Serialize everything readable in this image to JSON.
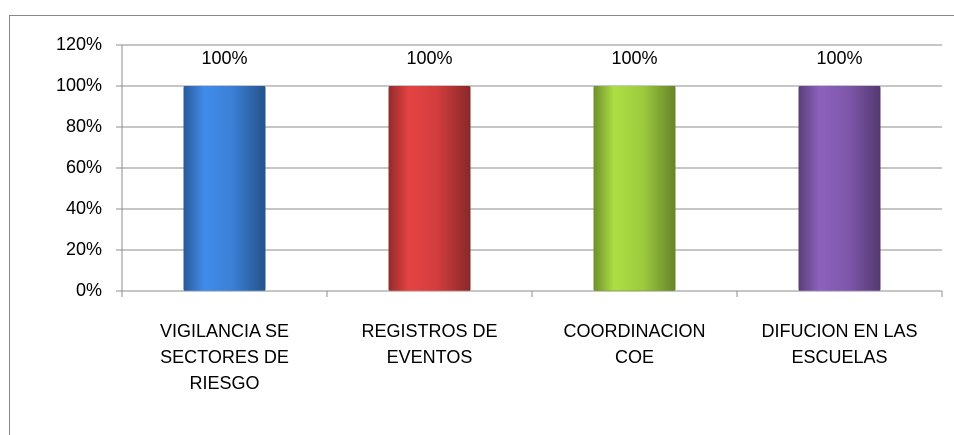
{
  "chart_data": {
    "type": "bar",
    "categories": [
      "VIGILANCIA SE\nSECTORES DE\nRIESGO",
      "REGISTROS DE\nEVENTOS",
      "COORDINACION\nCOE",
      "DIFUCION EN LAS\nESCUELAS"
    ],
    "values": [
      100,
      100,
      100,
      100
    ],
    "value_labels": [
      "100%",
      "100%",
      "100%",
      "100%"
    ],
    "colors": [
      "#3b7fd6",
      "#d13d3d",
      "#9dcb3e",
      "#7f58ac"
    ],
    "ylim": [
      0,
      120
    ],
    "yticks": [
      {
        "value": 0,
        "label": "0%"
      },
      {
        "value": 20,
        "label": "20%"
      },
      {
        "value": 40,
        "label": "40%"
      },
      {
        "value": 60,
        "label": "60%"
      },
      {
        "value": 80,
        "label": "80%"
      },
      {
        "value": 100,
        "label": "100%"
      },
      {
        "value": 120,
        "label": "120%"
      }
    ],
    "grid": true
  }
}
